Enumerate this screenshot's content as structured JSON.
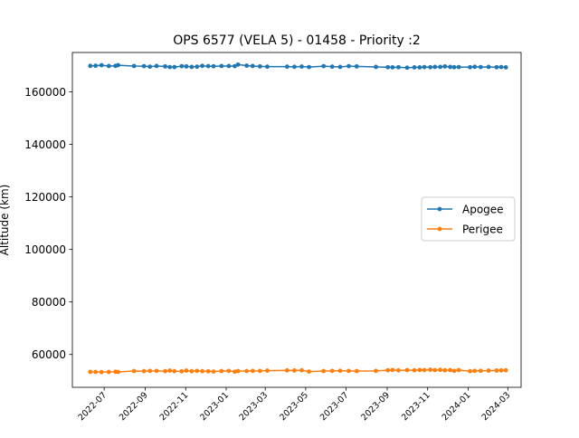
{
  "chart_data": {
    "type": "line",
    "title": "OPS 6577 (VELA 5) - 01458 - Priority :2",
    "xlabel": "",
    "ylabel": "Altitude (km)",
    "x_axis": "date",
    "xlim": [
      "2022-05-14",
      "2024-03-21"
    ],
    "ylim": [
      47500,
      175000
    ],
    "yticks": [
      60000,
      80000,
      100000,
      120000,
      140000,
      160000
    ],
    "xticks": [
      "2022-07",
      "2022-09",
      "2022-11",
      "2023-01",
      "2023-03",
      "2023-05",
      "2023-07",
      "2023-09",
      "2023-11",
      "2024-01",
      "2024-03"
    ],
    "legend_position": "center-right",
    "grid": false,
    "x": [
      "2022-06-10",
      "2022-06-18",
      "2022-06-27",
      "2022-07-08",
      "2022-07-18",
      "2022-07-22",
      "2022-08-15",
      "2022-08-30",
      "2022-09-08",
      "2022-09-18",
      "2022-10-01",
      "2022-10-08",
      "2022-10-15",
      "2022-10-26",
      "2022-11-02",
      "2022-11-10",
      "2022-11-18",
      "2022-11-26",
      "2022-12-05",
      "2022-12-13",
      "2022-12-25",
      "2023-01-05",
      "2023-01-14",
      "2023-01-19",
      "2023-02-01",
      "2023-02-10",
      "2023-02-21",
      "2023-03-04",
      "2023-04-03",
      "2023-04-14",
      "2023-04-25",
      "2023-05-06",
      "2023-05-28",
      "2023-06-10",
      "2023-06-22",
      "2023-07-05",
      "2023-07-17",
      "2023-08-15",
      "2023-09-02",
      "2023-09-09",
      "2023-09-18",
      "2023-10-01",
      "2023-10-12",
      "2023-10-20",
      "2023-10-27",
      "2023-11-05",
      "2023-11-12",
      "2023-11-20",
      "2023-11-27",
      "2023-12-05",
      "2023-12-11",
      "2023-12-18",
      "2024-01-04",
      "2024-01-11",
      "2024-01-20",
      "2024-02-01",
      "2024-02-13",
      "2024-02-20",
      "2024-02-27"
    ],
    "series": [
      {
        "name": "Apogee",
        "color": "#1f77b4",
        "values": [
          169900,
          169950,
          170150,
          169850,
          169900,
          170150,
          169850,
          169800,
          169600,
          169850,
          169700,
          169450,
          169450,
          169800,
          169700,
          169500,
          169600,
          169900,
          169800,
          169750,
          169850,
          169850,
          169800,
          170400,
          170000,
          169850,
          169700,
          169600,
          169600,
          169550,
          169650,
          169450,
          169800,
          169600,
          169500,
          169800,
          169700,
          169500,
          169400,
          169350,
          169400,
          169200,
          169350,
          169350,
          169450,
          169400,
          169500,
          169500,
          169700,
          169500,
          169400,
          169450,
          169400,
          169550,
          169450,
          169500,
          169400,
          169450,
          169350
        ]
      },
      {
        "name": "Perigee",
        "color": "#ff7f0e",
        "values": [
          53400,
          53350,
          53300,
          53350,
          53450,
          53350,
          53700,
          53650,
          53750,
          53750,
          53650,
          53850,
          53650,
          53600,
          53850,
          53650,
          53750,
          53650,
          53600,
          53500,
          53700,
          53750,
          53450,
          53700,
          53700,
          53750,
          53750,
          53850,
          53950,
          53900,
          54000,
          53500,
          53700,
          53750,
          53800,
          53750,
          53700,
          53750,
          54000,
          54100,
          53950,
          54050,
          54000,
          54100,
          54050,
          54200,
          54050,
          54150,
          54000,
          54050,
          53750,
          54050,
          53650,
          53750,
          53800,
          53850,
          53900,
          53950,
          54000
        ]
      }
    ]
  }
}
